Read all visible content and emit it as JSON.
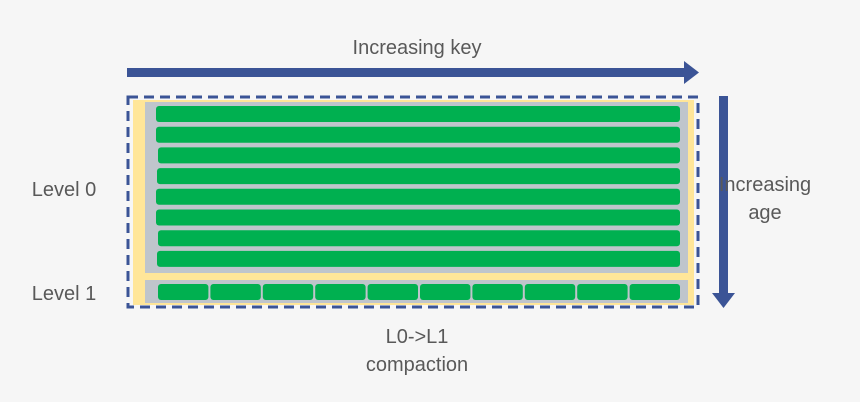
{
  "labels": {
    "key_axis": "Increasing key",
    "age_axis": "Increasing age",
    "level0": "Level 0",
    "level1": "Level 1",
    "compaction": "L0->L1 compaction"
  }
}
